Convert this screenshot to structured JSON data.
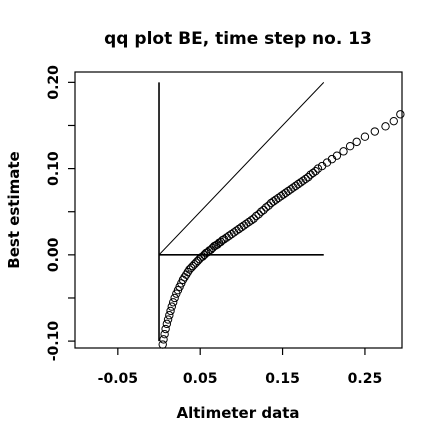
{
  "chart_data": {
    "type": "scatter",
    "title": "qq plot BE, time step no. 13",
    "xlabel": "Altimeter data",
    "ylabel": "Best estimate",
    "xlim": [
      -0.102,
      0.295
    ],
    "ylim": [
      -0.108,
      0.212
    ],
    "x_ticks": [
      {
        "value": -0.05,
        "label": "-0.05"
      },
      {
        "value": 0.05,
        "label": "0.05"
      },
      {
        "value": 0.15,
        "label": "0.15"
      },
      {
        "value": 0.25,
        "label": "0.25"
      }
    ],
    "y_ticks": [
      {
        "value": -0.1,
        "label": "-0.10"
      },
      {
        "value": 0.0,
        "label": "0.00"
      },
      {
        "value": 0.1,
        "label": "0.10"
      },
      {
        "value": 0.2,
        "label": "0.20"
      }
    ],
    "reference_lines": {
      "identity": {
        "x": [
          0.0,
          0.2
        ],
        "y": [
          0.0,
          0.2
        ]
      },
      "horizontal": {
        "x": [
          0.0,
          0.2
        ],
        "y": [
          0.0,
          0.0
        ]
      },
      "vertical": {
        "x": [
          0.0,
          0.0
        ],
        "y": [
          -0.1,
          0.2
        ]
      }
    },
    "marker": "open-circle",
    "grid": false,
    "points": [
      [
        0.0045,
        -0.104
      ],
      [
        0.0055,
        -0.098
      ],
      [
        0.0068,
        -0.092
      ],
      [
        0.008,
        -0.086
      ],
      [
        0.0095,
        -0.08
      ],
      [
        0.011,
        -0.075
      ],
      [
        0.0125,
        -0.07
      ],
      [
        0.014,
        -0.065
      ],
      [
        0.0155,
        -0.06
      ],
      [
        0.0172,
        -0.055
      ],
      [
        0.019,
        -0.05
      ],
      [
        0.021,
        -0.045
      ],
      [
        0.023,
        -0.041
      ],
      [
        0.025,
        -0.037
      ],
      [
        0.027,
        -0.033
      ],
      [
        0.029,
        -0.029
      ],
      [
        0.031,
        -0.026
      ],
      [
        0.033,
        -0.023
      ],
      [
        0.035,
        -0.02
      ],
      [
        0.037,
        -0.017
      ],
      [
        0.039,
        -0.015
      ],
      [
        0.041,
        -0.013
      ],
      [
        0.043,
        -0.011
      ],
      [
        0.045,
        -0.009
      ],
      [
        0.047,
        -0.007
      ],
      [
        0.049,
        -0.005
      ],
      [
        0.051,
        -0.003
      ],
      [
        0.053,
        -0.002
      ],
      [
        0.055,
        0.0
      ],
      [
        0.057,
        0.002
      ],
      [
        0.059,
        0.003
      ],
      [
        0.061,
        0.005
      ],
      [
        0.063,
        0.006
      ],
      [
        0.065,
        0.008
      ],
      [
        0.067,
        0.01
      ],
      [
        0.069,
        0.011
      ],
      [
        0.071,
        0.012
      ],
      [
        0.073,
        0.014
      ],
      [
        0.075,
        0.015
      ],
      [
        0.077,
        0.017
      ],
      [
        0.079,
        0.018
      ],
      [
        0.082,
        0.02
      ],
      [
        0.085,
        0.022
      ],
      [
        0.088,
        0.024
      ],
      [
        0.091,
        0.026
      ],
      [
        0.094,
        0.028
      ],
      [
        0.097,
        0.03
      ],
      [
        0.1,
        0.032
      ],
      [
        0.103,
        0.034
      ],
      [
        0.106,
        0.036
      ],
      [
        0.109,
        0.038
      ],
      [
        0.112,
        0.04
      ],
      [
        0.115,
        0.042
      ],
      [
        0.118,
        0.045
      ],
      [
        0.121,
        0.047
      ],
      [
        0.124,
        0.05
      ],
      [
        0.127,
        0.052
      ],
      [
        0.13,
        0.055
      ],
      [
        0.133,
        0.057
      ],
      [
        0.136,
        0.06
      ],
      [
        0.139,
        0.062
      ],
      [
        0.142,
        0.064
      ],
      [
        0.145,
        0.066
      ],
      [
        0.148,
        0.068
      ],
      [
        0.151,
        0.07
      ],
      [
        0.154,
        0.072
      ],
      [
        0.157,
        0.074
      ],
      [
        0.16,
        0.076
      ],
      [
        0.163,
        0.078
      ],
      [
        0.166,
        0.08
      ],
      [
        0.169,
        0.082
      ],
      [
        0.172,
        0.084
      ],
      [
        0.175,
        0.086
      ],
      [
        0.178,
        0.088
      ],
      [
        0.181,
        0.09
      ],
      [
        0.184,
        0.093
      ],
      [
        0.187,
        0.095
      ],
      [
        0.19,
        0.097
      ],
      [
        0.193,
        0.1
      ],
      [
        0.198,
        0.103
      ],
      [
        0.204,
        0.107
      ],
      [
        0.21,
        0.111
      ],
      [
        0.216,
        0.115
      ],
      [
        0.224,
        0.12
      ],
      [
        0.232,
        0.126
      ],
      [
        0.24,
        0.131
      ],
      [
        0.25,
        0.137
      ],
      [
        0.262,
        0.143
      ],
      [
        0.275,
        0.149
      ],
      [
        0.285,
        0.155
      ],
      [
        0.293,
        0.163
      ]
    ]
  }
}
